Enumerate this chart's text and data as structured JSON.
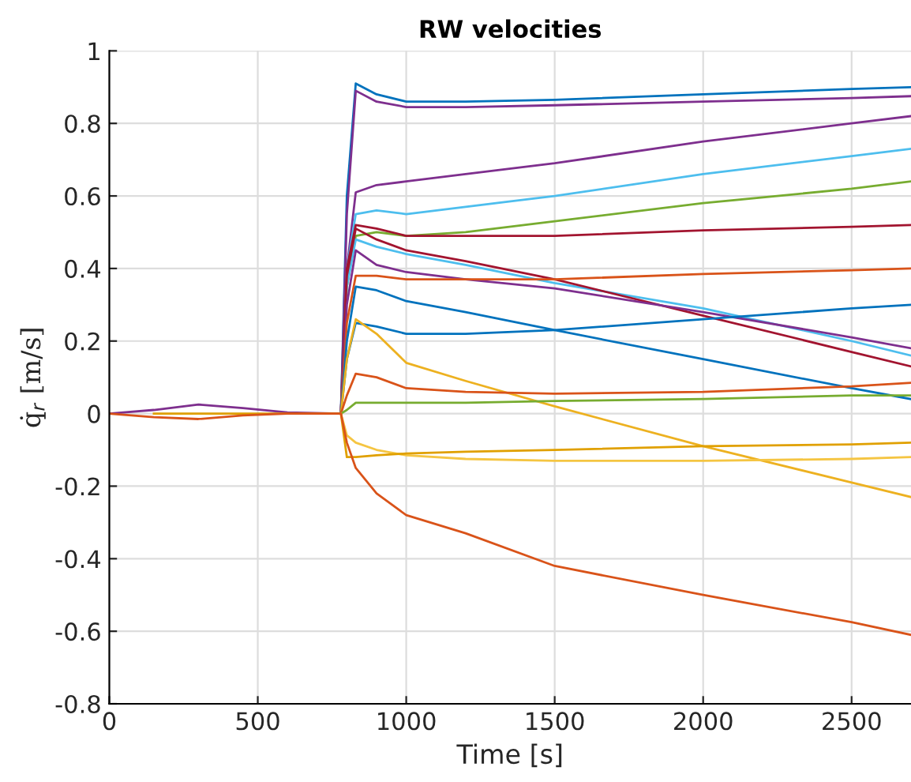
{
  "chart_data": {
    "type": "line",
    "title": "RW velocities",
    "xlabel": "Time [s]",
    "ylabel": "q̇$_{r}$ [m/s]",
    "x": [
      0,
      150,
      300,
      450,
      600,
      780,
      800,
      830,
      900,
      1000,
      1200,
      1500,
      2000,
      2500,
      2700
    ],
    "series": [
      {
        "color": "#0072bd",
        "values": [
          null,
          null,
          null,
          null,
          null,
          0,
          0.6,
          0.91,
          0.88,
          0.86,
          0.86,
          0.865,
          0.88,
          0.895,
          0.9
        ]
      },
      {
        "color": "#7e2f8e",
        "values": [
          0,
          0.01,
          0.025,
          0.015,
          0.003,
          0,
          0.55,
          0.89,
          0.86,
          0.845,
          0.845,
          0.85,
          0.86,
          0.87,
          0.875
        ]
      },
      {
        "color": "#7e2f8e",
        "values": [
          null,
          null,
          null,
          null,
          null,
          0,
          0.4,
          0.61,
          0.63,
          0.64,
          0.66,
          0.69,
          0.75,
          0.8,
          0.82
        ]
      },
      {
        "color": "#4dbeee",
        "values": [
          null,
          null,
          null,
          null,
          null,
          0,
          0.4,
          0.55,
          0.56,
          0.55,
          0.57,
          0.6,
          0.66,
          0.71,
          0.73
        ]
      },
      {
        "color": "#77ac30",
        "values": [
          null,
          null,
          null,
          null,
          null,
          0,
          0.35,
          0.49,
          0.5,
          0.49,
          0.5,
          0.53,
          0.58,
          0.62,
          0.64
        ]
      },
      {
        "color": "#a2142f",
        "values": [
          null,
          null,
          null,
          null,
          null,
          0,
          0.4,
          0.52,
          0.51,
          0.49,
          0.49,
          0.49,
          0.505,
          0.515,
          0.52
        ]
      },
      {
        "color": "#4dbeee",
        "values": [
          null,
          null,
          null,
          null,
          null,
          0,
          0.35,
          0.48,
          0.46,
          0.44,
          0.41,
          0.36,
          0.29,
          0.2,
          0.16
        ]
      },
      {
        "color": "#a2142f",
        "values": [
          null,
          null,
          null,
          null,
          null,
          0,
          0.38,
          0.51,
          0.48,
          0.45,
          0.42,
          0.37,
          0.27,
          0.17,
          0.13
        ]
      },
      {
        "color": "#7e2f8e",
        "values": [
          null,
          null,
          null,
          null,
          null,
          0,
          0.3,
          0.45,
          0.41,
          0.39,
          0.37,
          0.345,
          0.28,
          0.21,
          0.18
        ]
      },
      {
        "color": "#d95319",
        "values": [
          null,
          null,
          null,
          null,
          null,
          0,
          0.25,
          0.38,
          0.38,
          0.37,
          0.37,
          0.37,
          0.385,
          0.395,
          0.4
        ]
      },
      {
        "color": "#0072bd",
        "values": [
          null,
          null,
          null,
          null,
          null,
          0,
          0.2,
          0.35,
          0.34,
          0.31,
          0.28,
          0.23,
          0.15,
          0.07,
          0.04
        ]
      },
      {
        "color": "#0072bd",
        "values": [
          null,
          null,
          null,
          null,
          null,
          0,
          0.15,
          0.25,
          0.24,
          0.22,
          0.22,
          0.23,
          0.26,
          0.29,
          0.3
        ]
      },
      {
        "color": "#edb120",
        "values": [
          null,
          null,
          null,
          null,
          null,
          0,
          0.15,
          0.26,
          0.22,
          0.14,
          0.09,
          0.02,
          -0.09,
          -0.19,
          -0.23
        ]
      },
      {
        "color": "#d95319",
        "values": [
          null,
          null,
          null,
          null,
          null,
          0,
          0.05,
          0.11,
          0.1,
          0.07,
          0.06,
          0.055,
          0.06,
          0.075,
          0.085
        ]
      },
      {
        "color": "#77ac30",
        "values": [
          null,
          null,
          null,
          null,
          null,
          0,
          0.01,
          0.03,
          0.03,
          0.03,
          0.03,
          0.035,
          0.04,
          0.05,
          0.05
        ]
      },
      {
        "color": "#f5c542",
        "values": [
          null,
          null,
          null,
          null,
          null,
          0,
          -0.06,
          -0.08,
          -0.1,
          -0.115,
          -0.125,
          -0.13,
          -0.13,
          -0.125,
          -0.12
        ]
      },
      {
        "color": "#e0a000",
        "values": [
          null,
          0,
          0,
          0,
          0,
          0,
          -0.12,
          -0.12,
          -0.115,
          -0.11,
          -0.105,
          -0.1,
          -0.09,
          -0.085,
          -0.08
        ]
      },
      {
        "color": "#d95319",
        "values": [
          0,
          -0.01,
          -0.015,
          -0.005,
          0,
          0,
          -0.08,
          -0.15,
          -0.22,
          -0.28,
          -0.33,
          -0.42,
          -0.5,
          -0.575,
          -0.61
        ]
      }
    ],
    "xlim": [
      0,
      2700
    ],
    "ylim": [
      -0.8,
      1
    ],
    "xticks": [
      0,
      500,
      1000,
      1500,
      2000,
      2500
    ],
    "yticks": [
      -0.8,
      -0.6,
      -0.4,
      -0.2,
      0,
      0.2,
      0.4,
      0.6,
      0.8,
      1
    ],
    "grid": true,
    "legend": false,
    "marker": "none",
    "line_style": "solid"
  }
}
